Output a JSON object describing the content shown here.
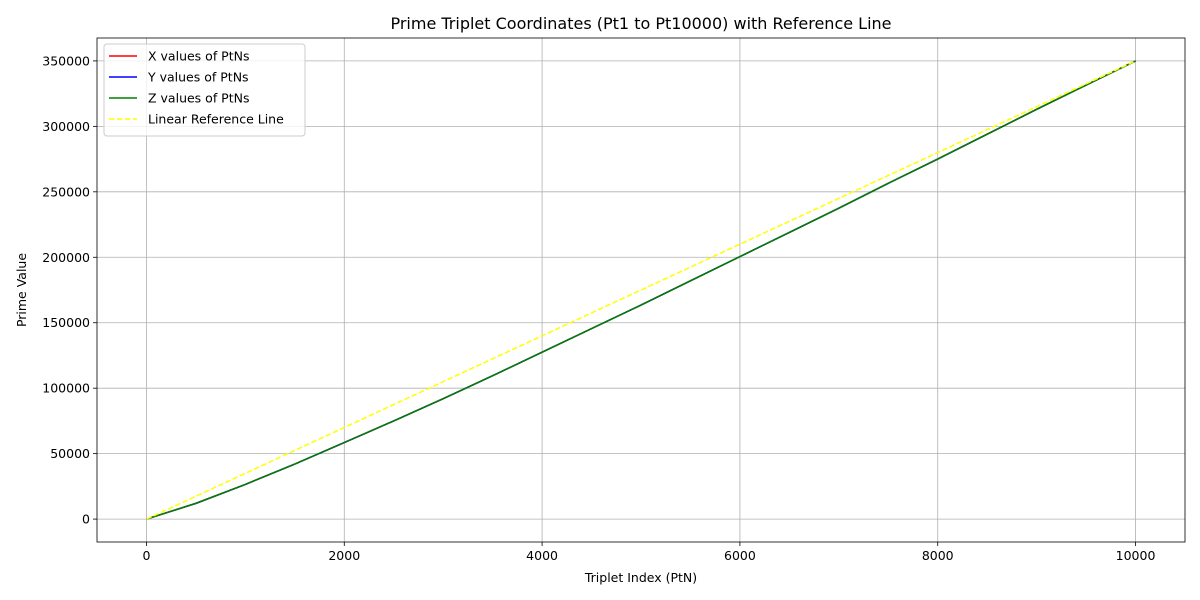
{
  "chart_data": {
    "type": "line",
    "title": "Prime Triplet Coordinates (Pt1 to Pt10000) with Reference Line",
    "xlabel": "Triplet Index (PtN)",
    "ylabel": "Prime Value",
    "xlim": [
      -500,
      10500
    ],
    "ylim": [
      -17500,
      367500
    ],
    "x_ticks": [
      0,
      2000,
      4000,
      6000,
      8000,
      10000
    ],
    "y_ticks": [
      0,
      50000,
      100000,
      150000,
      200000,
      250000,
      300000,
      350000
    ],
    "grid": true,
    "legend_position": "top-left",
    "series": [
      {
        "name": "X values of PtNs",
        "color": "#ff0000",
        "style": "solid",
        "x": [
          1,
          500,
          1000,
          1500,
          2000,
          2500,
          3000,
          3500,
          4000,
          4500,
          5000,
          5500,
          6000,
          6500,
          7000,
          7500,
          8000,
          8500,
          9000,
          9500,
          10000
        ],
        "y": [
          5,
          12000,
          26500,
          42000,
          58500,
          75000,
          92000,
          109500,
          127500,
          145500,
          163500,
          182000,
          200500,
          219000,
          237500,
          256500,
          275000,
          294000,
          313000,
          331500,
          350000
        ]
      },
      {
        "name": "Y values of PtNs",
        "color": "#0000ff",
        "style": "solid",
        "x": [
          1,
          500,
          1000,
          1500,
          2000,
          2500,
          3000,
          3500,
          4000,
          4500,
          5000,
          5500,
          6000,
          6500,
          7000,
          7500,
          8000,
          8500,
          9000,
          9500,
          10000
        ],
        "y": [
          7,
          12002,
          26502,
          42002,
          58502,
          75002,
          92002,
          109502,
          127502,
          145502,
          163502,
          182002,
          200502,
          219002,
          237502,
          256502,
          275002,
          294002,
          313002,
          331502,
          350002
        ]
      },
      {
        "name": "Z values of PtNs",
        "color": "#008000",
        "style": "solid",
        "x": [
          1,
          500,
          1000,
          1500,
          2000,
          2500,
          3000,
          3500,
          4000,
          4500,
          5000,
          5500,
          6000,
          6500,
          7000,
          7500,
          8000,
          8500,
          9000,
          9500,
          10000
        ],
        "y": [
          11,
          12006,
          26506,
          42006,
          58506,
          75006,
          92006,
          109506,
          127506,
          145506,
          163506,
          182006,
          200506,
          219006,
          237506,
          256506,
          275006,
          294006,
          313006,
          331506,
          350006
        ]
      },
      {
        "name": "Linear Reference Line",
        "color": "#ffff00",
        "style": "dashed",
        "x": [
          1,
          10000
        ],
        "y": [
          5,
          350000
        ]
      }
    ]
  }
}
